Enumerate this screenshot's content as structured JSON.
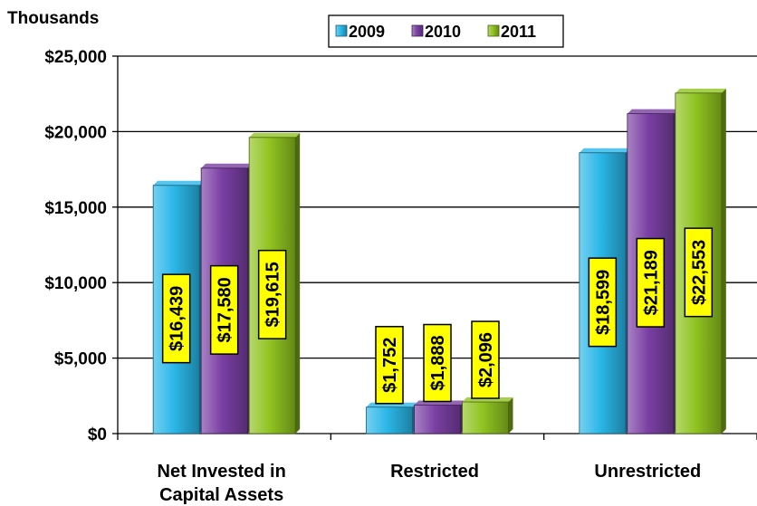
{
  "chart_data": {
    "type": "bar",
    "unit_label": "Thousands",
    "categories": [
      "Net Invested in Capital Assets",
      "Restricted",
      "Unrestricted"
    ],
    "category_lines": [
      [
        "Net Invested in",
        "Capital Assets"
      ],
      [
        "Restricted"
      ],
      [
        "Unrestricted"
      ]
    ],
    "series": [
      {
        "name": "2009",
        "color": "#2ab7e8",
        "values": [
          16439,
          1752,
          18599
        ],
        "labels": [
          "$16,439",
          "$1,752",
          "$18,599"
        ]
      },
      {
        "name": "2010",
        "color": "#7a3fa3",
        "values": [
          17580,
          1888,
          21189
        ],
        "labels": [
          "$17,580",
          "$1,888",
          "$21,189"
        ]
      },
      {
        "name": "2011",
        "color": "#8fc31f",
        "values": [
          19615,
          2096,
          22553
        ],
        "labels": [
          "$19,615",
          "$2,096",
          "$22,553"
        ]
      }
    ],
    "ylim": [
      0,
      25000
    ],
    "yticks": [
      0,
      5000,
      10000,
      15000,
      20000,
      25000
    ],
    "ytick_labels": [
      "$0",
      "$5,000",
      "$10,000",
      "$15,000",
      "$20,000",
      "$25,000"
    ],
    "grid": "horizontal",
    "legend_position": "top",
    "data_label_bg": "#ffff00"
  }
}
